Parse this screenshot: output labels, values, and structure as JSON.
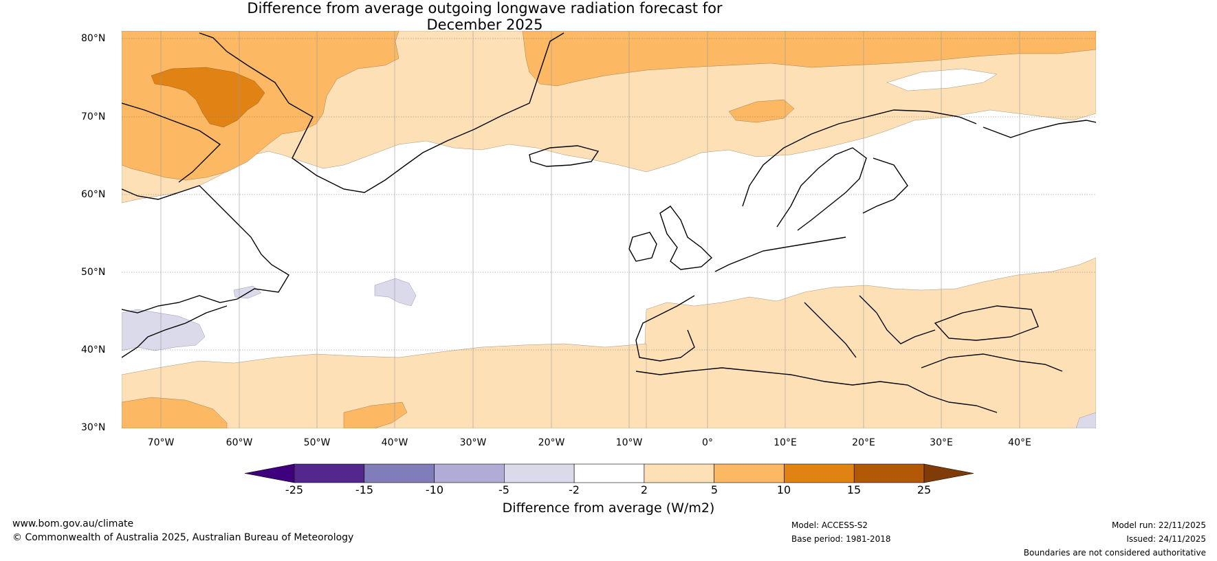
{
  "title": {
    "line1": "Difference from average outgoing longwave radiation forecast for",
    "line2": "December 2025"
  },
  "map": {
    "region": "North Atlantic and Europe",
    "lat_labels": [
      "80°N",
      "70°N",
      "60°N",
      "50°N",
      "40°N",
      "30°N"
    ],
    "lon_labels": [
      "70°W",
      "60°W",
      "50°W",
      "40°W",
      "30°W",
      "20°W",
      "10°W",
      "0°",
      "10°E",
      "20°E",
      "30°E",
      "40°E"
    ]
  },
  "colorbar": {
    "ticks": [
      "-25",
      "-15",
      "-10",
      "-5",
      "-2",
      "2",
      "5",
      "10",
      "15",
      "25"
    ],
    "colors": [
      "#3f007d",
      "#54278f",
      "#807dba",
      "#b1acd6",
      "#dadaeb",
      "#ffffff",
      "#fee0b6",
      "#fdb863",
      "#e08214",
      "#b35806",
      "#7f3b08"
    ],
    "label": "Difference from average (W/m2)"
  },
  "footer": {
    "website": "www.bom.gov.au/climate",
    "copyright": "© Commonwealth of Australia 2025, Australian Bureau of Meteorology",
    "model": "Model: ACCESS-S2",
    "base_period": "Base period: 1981-2018",
    "model_run": "Model run: 22/11/2025",
    "issued": "Issued: 24/11/2025",
    "disclaimer": "Boundaries are not considered authoritative"
  }
}
